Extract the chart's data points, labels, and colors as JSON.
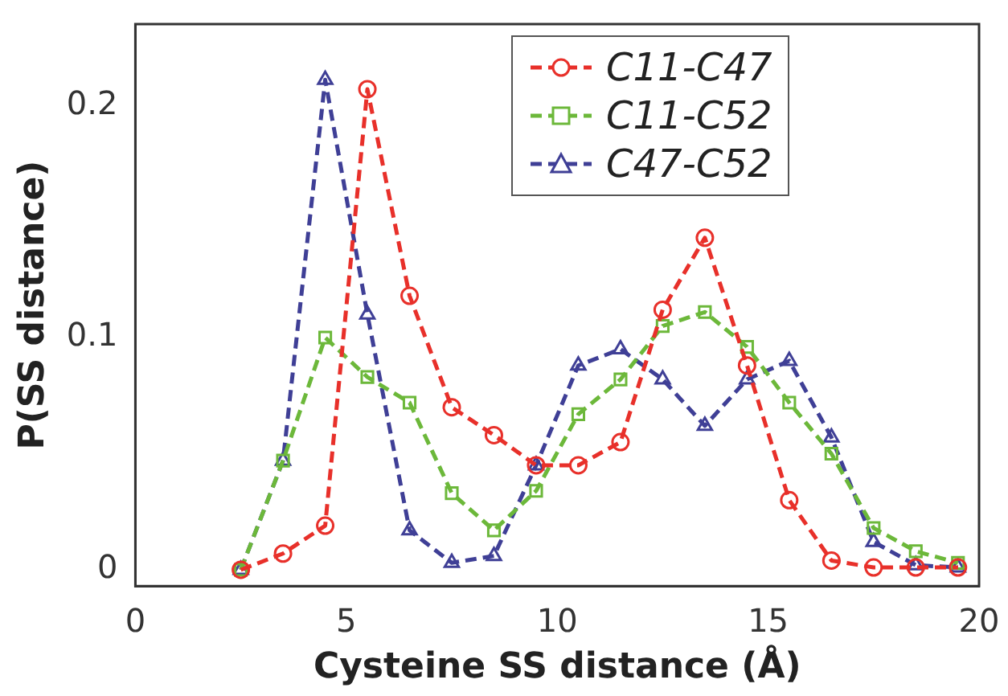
{
  "chart_data": {
    "type": "line",
    "xlabel": "Cysteine SS distance (Å)",
    "ylabel": "P(SS distance)",
    "x": [
      2.5,
      3.5,
      4.5,
      5.5,
      6.5,
      7.5,
      8.5,
      9.5,
      10.5,
      11.5,
      12.5,
      13.5,
      14.5,
      15.5,
      16.5,
      17.5,
      18.5,
      19.5
    ],
    "series": [
      {
        "name": "C11-C47",
        "color": "#e8302a",
        "marker": "circle",
        "values": [
          0,
          0.007,
          0.019,
          0.207,
          0.118,
          0.07,
          0.058,
          0.045,
          0.045,
          0.055,
          0.112,
          0.143,
          0.088,
          0.03,
          0.004,
          0.001,
          0.001,
          0.001
        ]
      },
      {
        "name": "C11-C52",
        "color": "#6cb83a",
        "marker": "square",
        "values": [
          0,
          0.047,
          0.1,
          0.083,
          0.072,
          0.033,
          0.017,
          0.034,
          0.067,
          0.082,
          0.105,
          0.111,
          0.096,
          0.072,
          0.05,
          0.018,
          0.008,
          0.003
        ]
      },
      {
        "name": "C47-C52",
        "color": "#3f3f96",
        "marker": "triangle",
        "values": [
          0,
          0.047,
          0.211,
          0.11,
          0.017,
          0.003,
          0.006,
          0.045,
          0.088,
          0.095,
          0.082,
          0.062,
          0.082,
          0.09,
          0.057,
          0.012,
          0.002,
          0.001
        ]
      }
    ],
    "xlim": [
      0,
      20
    ],
    "xticks": [
      0,
      5,
      10,
      15,
      20
    ],
    "ylim": [
      -0.007,
      0.235
    ],
    "yticks": [
      0,
      0.1,
      0.2
    ],
    "line_style": "dashed",
    "grid": false,
    "legend": "top right"
  }
}
